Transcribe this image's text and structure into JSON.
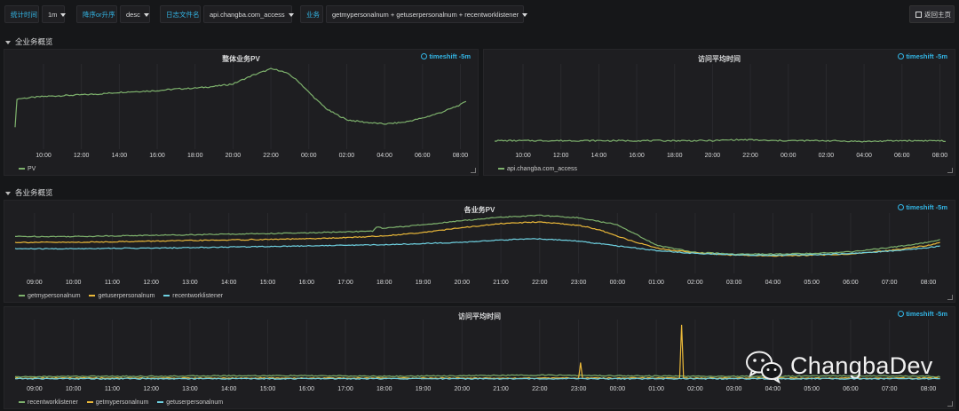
{
  "toolbar": {
    "interval_label": "统计时间",
    "interval_value": "1m",
    "order_label": "降序or升序",
    "order_value": "desc",
    "logfile_label": "日志文件名",
    "logfile_value": "api.changba.com_access",
    "business_label": "业务",
    "business_value": "getmypersonalnum + getuserpersonalnum + recentworklistener",
    "back_label": "返回主页"
  },
  "rows": {
    "overview": "全业务概览",
    "each": "各业务概览"
  },
  "colors": {
    "green": "#7eb26d",
    "yellow": "#eab839",
    "blue": "#6ed0e0",
    "accent": "#33b5e5"
  },
  "panels": {
    "pv_total": {
      "title": "整体业务PV",
      "timeshift": "timeshift -5m",
      "legend": [
        {
          "name": "PV",
          "color": "#7eb26d"
        }
      ]
    },
    "avg_time": {
      "title": "访问平均时间",
      "timeshift": "timeshift -5m",
      "legend": [
        {
          "name": "api.changba.com_access",
          "color": "#7eb26d"
        }
      ]
    },
    "pv_each": {
      "title": "各业务PV",
      "timeshift": "timeshift -5m",
      "legend": [
        {
          "name": "getmypersonalnum",
          "color": "#7eb26d"
        },
        {
          "name": "getuserpersonalnum",
          "color": "#eab839"
        },
        {
          "name": "recentworklistener",
          "color": "#6ed0e0"
        }
      ]
    },
    "avg_each": {
      "title": "访问平均时间",
      "timeshift": "timeshift -5m",
      "legend": [
        {
          "name": "recentworklistener",
          "color": "#7eb26d"
        },
        {
          "name": "getmypersonalnum",
          "color": "#eab839"
        },
        {
          "name": "getuserpersonalnum",
          "color": "#6ed0e0"
        }
      ]
    }
  },
  "chart_data": [
    {
      "id": "pv_total",
      "type": "line",
      "title": "整体业务PV",
      "x_range": [
        8.5,
        32.4
      ],
      "y_range": [
        0,
        100
      ],
      "x_ticks": [
        "10:00",
        "12:00",
        "14:00",
        "16:00",
        "18:00",
        "20:00",
        "22:00",
        "00:00",
        "02:00",
        "04:00",
        "06:00",
        "08:00"
      ],
      "x_tick_values": [
        10,
        12,
        14,
        16,
        18,
        20,
        22,
        24,
        26,
        28,
        30,
        32
      ],
      "series": [
        {
          "name": "PV",
          "color": "#7eb26d",
          "x": [
            8.5,
            8.6,
            9,
            10,
            11,
            12,
            13,
            14,
            15,
            16,
            17,
            18,
            19,
            20,
            20.5,
            21,
            21.5,
            22,
            22.5,
            23,
            23.5,
            24,
            24.5,
            25,
            26,
            27,
            28,
            29,
            30,
            31,
            32,
            32.3
          ],
          "y": [
            25,
            58,
            59,
            61,
            62,
            63,
            64,
            66,
            67,
            68,
            70,
            71,
            73,
            76,
            81,
            86,
            90,
            94,
            92,
            87,
            78,
            66,
            55,
            45,
            33,
            30,
            28,
            30,
            35,
            42,
            51,
            55
          ]
        }
      ]
    },
    {
      "id": "avg_time",
      "type": "line",
      "title": "访问平均时间",
      "x_range": [
        8.5,
        32.4
      ],
      "y_range": [
        0,
        100
      ],
      "x_ticks": [
        "10:00",
        "12:00",
        "14:00",
        "16:00",
        "18:00",
        "20:00",
        "22:00",
        "00:00",
        "02:00",
        "04:00",
        "06:00",
        "08:00"
      ],
      "x_tick_values": [
        10,
        12,
        14,
        16,
        18,
        20,
        22,
        24,
        26,
        28,
        30,
        32
      ],
      "series": [
        {
          "name": "api.changba.com_access",
          "color": "#7eb26d",
          "x": [
            8.5,
            10,
            12,
            14,
            16,
            18,
            20,
            21,
            22,
            23,
            24,
            26,
            28,
            30,
            32,
            32.3
          ],
          "y": [
            8,
            8,
            8,
            8,
            8,
            8,
            8,
            9,
            9,
            8,
            8,
            8,
            7,
            8,
            8,
            7
          ]
        }
      ]
    },
    {
      "id": "pv_each",
      "type": "line",
      "title": "各业务PV",
      "x_range": [
        8.5,
        32.4
      ],
      "y_range": [
        0,
        100
      ],
      "x_ticks": [
        "09:00",
        "10:00",
        "11:00",
        "12:00",
        "13:00",
        "14:00",
        "15:00",
        "16:00",
        "17:00",
        "18:00",
        "19:00",
        "20:00",
        "21:00",
        "22:00",
        "23:00",
        "00:00",
        "01:00",
        "02:00",
        "03:00",
        "04:00",
        "05:00",
        "06:00",
        "07:00",
        "08:00"
      ],
      "x_tick_values": [
        9,
        10,
        11,
        12,
        13,
        14,
        15,
        16,
        17,
        18,
        19,
        20,
        21,
        22,
        23,
        24,
        25,
        26,
        27,
        28,
        29,
        30,
        31,
        32
      ],
      "series": [
        {
          "name": "getmypersonalnum",
          "color": "#7eb26d",
          "x": [
            8.5,
            9,
            10,
            11,
            12,
            13,
            14,
            15,
            16,
            17,
            17.7,
            17.8,
            18,
            19,
            20,
            21,
            22,
            23,
            23.5,
            24,
            24.5,
            25,
            26,
            27,
            28,
            29,
            30,
            31,
            32,
            32.3
          ],
          "y": [
            60,
            60,
            60,
            61,
            62,
            63,
            64,
            65,
            66,
            68,
            69,
            76,
            74,
            80,
            87,
            93,
            96,
            92,
            86,
            80,
            63,
            45,
            33,
            30,
            30,
            31,
            34,
            41,
            50,
            55
          ]
        },
        {
          "name": "getuserpersonalnum",
          "color": "#eab839",
          "x": [
            8.5,
            9,
            10,
            11,
            12,
            13,
            14,
            15,
            16,
            17,
            18,
            19,
            20,
            21,
            22,
            23,
            23.5,
            24,
            24.5,
            25,
            26,
            27,
            28,
            29,
            30,
            31,
            32,
            32.3
          ],
          "y": [
            50,
            50,
            50,
            51,
            52,
            53,
            54,
            55,
            56,
            58,
            61,
            67,
            75,
            82,
            85,
            79,
            72,
            60,
            50,
            40,
            32,
            28,
            27,
            28,
            30,
            36,
            45,
            50
          ]
        },
        {
          "name": "recentworklistener",
          "color": "#6ed0e0",
          "x": [
            8.5,
            9,
            10,
            11,
            12,
            13,
            14,
            15,
            16,
            17,
            18,
            19,
            20,
            21,
            22,
            23,
            24,
            25,
            26,
            27,
            28,
            29,
            30,
            31,
            32,
            32.3
          ],
          "y": [
            39,
            39,
            39,
            40,
            40,
            41,
            42,
            43,
            44,
            45,
            46,
            48,
            50,
            54,
            56,
            52,
            44,
            36,
            31,
            29,
            28,
            29,
            31,
            35,
            41,
            44
          ]
        }
      ]
    },
    {
      "id": "avg_each",
      "type": "line",
      "title": "访问平均时间",
      "x_range": [
        8.5,
        32.4
      ],
      "y_range": [
        0,
        100
      ],
      "x_ticks": [
        "09:00",
        "10:00",
        "11:00",
        "12:00",
        "13:00",
        "14:00",
        "15:00",
        "16:00",
        "17:00",
        "18:00",
        "19:00",
        "20:00",
        "21:00",
        "22:00",
        "23:00",
        "00:00",
        "01:00",
        "02:00",
        "03:00",
        "04:00",
        "05:00",
        "06:00",
        "07:00",
        "08:00"
      ],
      "x_tick_values": [
        9,
        10,
        11,
        12,
        13,
        14,
        15,
        16,
        17,
        18,
        19,
        20,
        21,
        22,
        23,
        24,
        25,
        26,
        27,
        28,
        29,
        30,
        31,
        32
      ],
      "series": [
        {
          "name": "recentworklistener",
          "color": "#7eb26d",
          "x": [
            8.5,
            10,
            12,
            14,
            16,
            18,
            20,
            22,
            24,
            26,
            28,
            30,
            32,
            32.3
          ],
          "y": [
            5,
            6,
            6,
            7,
            7,
            6,
            7,
            8,
            7,
            6,
            6,
            7,
            6,
            5
          ]
        },
        {
          "name": "getmypersonalnum",
          "color": "#eab839",
          "x": [
            8.5,
            12,
            16,
            20,
            23,
            23.05,
            23.1,
            24,
            25.6,
            25.65,
            25.7,
            28,
            32,
            32.3
          ],
          "y": [
            3,
            3,
            3,
            3,
            3,
            28,
            3,
            3,
            3,
            92,
            3,
            3,
            3,
            3
          ]
        },
        {
          "name": "getuserpersonalnum",
          "color": "#6ed0e0",
          "x": [
            8.5,
            12,
            16,
            20,
            24,
            28,
            32,
            32.3
          ],
          "y": [
            2,
            2,
            2,
            2,
            2,
            2,
            2,
            2
          ]
        }
      ]
    }
  ],
  "watermark": {
    "text": "ChangbaDev"
  }
}
